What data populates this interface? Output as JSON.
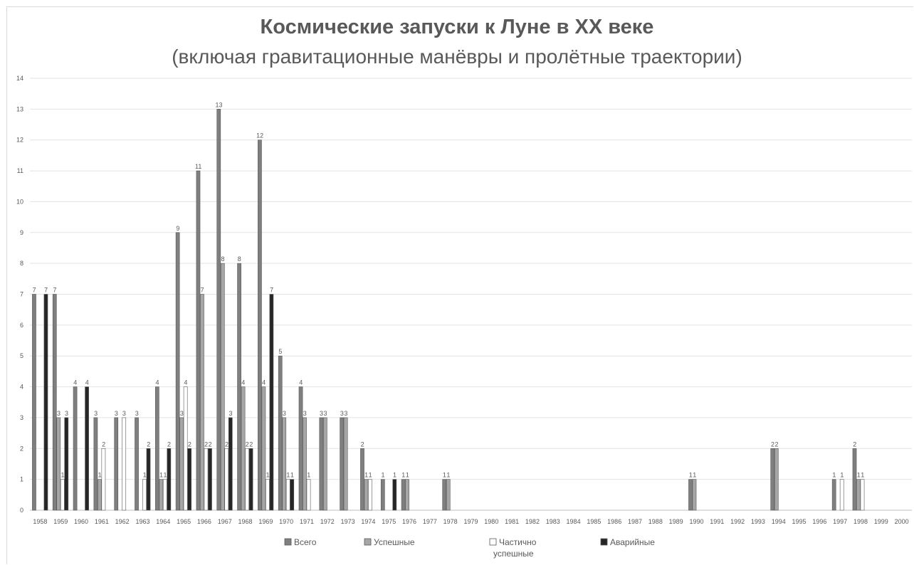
{
  "chart_data": {
    "type": "bar",
    "title": "Космические запуски к Луне в XX веке",
    "subtitle": "(включая гравитационные манёвры и пролётные траектории)",
    "xlabel": "",
    "ylabel": "",
    "ylim": [
      0,
      14
    ],
    "yticks": [
      0,
      1,
      2,
      3,
      4,
      5,
      6,
      7,
      8,
      9,
      10,
      11,
      12,
      13,
      14
    ],
    "grid": true,
    "legend_position": "bottom",
    "categories": [
      "1958",
      "1959",
      "1960",
      "1961",
      "1962",
      "1963",
      "1964",
      "1965",
      "1966",
      "1967",
      "1968",
      "1969",
      "1970",
      "1971",
      "1972",
      "1973",
      "1974",
      "1975",
      "1976",
      "1977",
      "1978",
      "1979",
      "1980",
      "1981",
      "1982",
      "1983",
      "1984",
      "1985",
      "1986",
      "1987",
      "1988",
      "1989",
      "1990",
      "1991",
      "1992",
      "1993",
      "1994",
      "1995",
      "1996",
      "1997",
      "1998",
      "1999",
      "2000"
    ],
    "series": [
      {
        "name": "Всего",
        "color": "#7f7f7f",
        "values": [
          7,
          7,
          4,
          3,
          3,
          3,
          4,
          9,
          11,
          13,
          8,
          12,
          5,
          4,
          3,
          3,
          2,
          1,
          1,
          0,
          1,
          0,
          0,
          0,
          0,
          0,
          0,
          0,
          0,
          0,
          0,
          0,
          1,
          0,
          0,
          0,
          2,
          0,
          0,
          1,
          2,
          0,
          0
        ]
      },
      {
        "name": "Успешные",
        "color": "#a6a6a6",
        "values": [
          0,
          3,
          0,
          1,
          0,
          0,
          1,
          3,
          7,
          8,
          4,
          4,
          3,
          3,
          3,
          3,
          1,
          0,
          1,
          0,
          1,
          0,
          0,
          0,
          0,
          0,
          0,
          0,
          0,
          0,
          0,
          0,
          1,
          0,
          0,
          0,
          2,
          0,
          0,
          0,
          1,
          0,
          0
        ]
      },
      {
        "name": "Частично успешные",
        "color": "#ffffff",
        "values": [
          0,
          1,
          0,
          2,
          3,
          1,
          1,
          4,
          2,
          2,
          2,
          1,
          1,
          1,
          0,
          0,
          1,
          0,
          0,
          0,
          0,
          0,
          0,
          0,
          0,
          0,
          0,
          0,
          0,
          0,
          0,
          0,
          0,
          0,
          0,
          0,
          0,
          0,
          0,
          1,
          1,
          0,
          0
        ]
      },
      {
        "name": "Аварийные",
        "color": "#262626",
        "values": [
          7,
          3,
          4,
          0,
          0,
          2,
          2,
          2,
          2,
          3,
          2,
          7,
          1,
          0,
          0,
          0,
          0,
          1,
          0,
          0,
          0,
          0,
          0,
          0,
          0,
          0,
          0,
          0,
          0,
          0,
          0,
          0,
          0,
          0,
          0,
          0,
          0,
          0,
          0,
          0,
          0,
          0,
          0
        ]
      }
    ]
  }
}
